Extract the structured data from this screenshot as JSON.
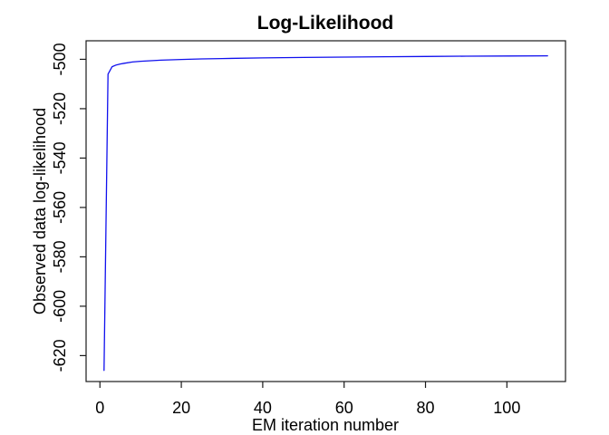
{
  "chart_data": {
    "type": "line",
    "title": "Log-Likelihood",
    "xlabel": "EM iteration number",
    "ylabel": "Observed data log-likelihood",
    "x_ticks": [
      0,
      20,
      40,
      60,
      80,
      100
    ],
    "y_ticks": [
      -620,
      -600,
      -580,
      -560,
      -540,
      -520,
      -500
    ],
    "xlim": [
      -3.4,
      114.4
    ],
    "ylim": [
      -630.5,
      -492.5
    ],
    "grid": false,
    "box": true,
    "legend": "none",
    "axis_color": "#1a1a1a",
    "series": [
      {
        "name": "observed-data-log-likelihood",
        "color": "#1010EE",
        "x": [
          1,
          2,
          3,
          4,
          5,
          6,
          8,
          10,
          12,
          15,
          20,
          25,
          30,
          40,
          50,
          60,
          70,
          80,
          90,
          100,
          110
        ],
        "y": [
          -626,
          -506,
          -503,
          -502.3,
          -501.9,
          -501.6,
          -501.1,
          -500.8,
          -500.6,
          -500.35,
          -500.05,
          -499.85,
          -499.7,
          -499.45,
          -499.25,
          -499.1,
          -498.95,
          -498.85,
          -498.75,
          -498.65,
          -498.6
        ]
      }
    ]
  }
}
